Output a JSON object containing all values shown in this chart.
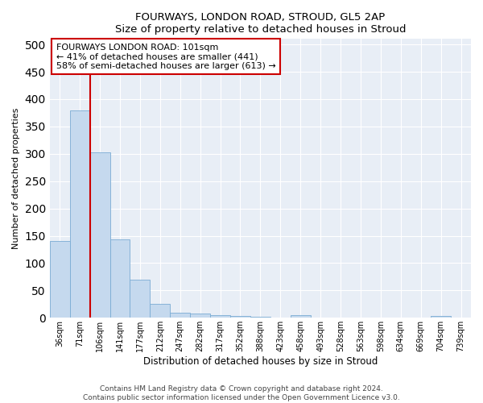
{
  "title": "FOURWAYS, LONDON ROAD, STROUD, GL5 2AP",
  "subtitle": "Size of property relative to detached houses in Stroud",
  "xlabel": "Distribution of detached houses by size in Stroud",
  "ylabel": "Number of detached properties",
  "bar_color": "#c5d9ee",
  "bar_edge_color": "#7aacd4",
  "background_color": "#e8eef6",
  "grid_color": "#ffffff",
  "categories": [
    "36sqm",
    "71sqm",
    "106sqm",
    "141sqm",
    "177sqm",
    "212sqm",
    "247sqm",
    "282sqm",
    "317sqm",
    "352sqm",
    "388sqm",
    "423sqm",
    "458sqm",
    "493sqm",
    "528sqm",
    "563sqm",
    "598sqm",
    "634sqm",
    "669sqm",
    "704sqm",
    "739sqm"
  ],
  "values": [
    141,
    379,
    303,
    144,
    70,
    25,
    10,
    8,
    5,
    3,
    2,
    1,
    5,
    0,
    0,
    0,
    0,
    0,
    0,
    4,
    0
  ],
  "vline_x": 1.5,
  "vline_color": "#cc0000",
  "annotation_line1": "FOURWAYS LONDON ROAD: 101sqm",
  "annotation_line2": "← 41% of detached houses are smaller (441)",
  "annotation_line3": "58% of semi-detached houses are larger (613) →",
  "annotation_box_color": "#ffffff",
  "annotation_box_edge": "#cc0000",
  "footer": "Contains HM Land Registry data © Crown copyright and database right 2024.\nContains public sector information licensed under the Open Government Licence v3.0.",
  "ylim": [
    0,
    510
  ],
  "yticks": [
    0,
    50,
    100,
    150,
    200,
    250,
    300,
    350,
    400,
    450,
    500
  ]
}
